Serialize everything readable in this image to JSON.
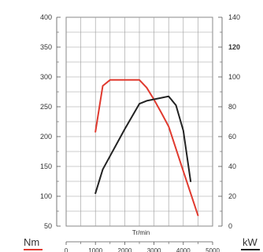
{
  "chart_data": {
    "type": "line",
    "title": "",
    "xlabel": "Tr/min",
    "xlim": [
      0,
      5000
    ],
    "x_ticks": [
      "0",
      "1000",
      "2000",
      "3000",
      "4000",
      "5000"
    ],
    "y_left": {
      "unit": "Nm",
      "color": "#e03a2f",
      "ylim": [
        50,
        400
      ],
      "ticks": [
        "50",
        "100",
        "150",
        "200",
        "250",
        "300",
        "350",
        "400"
      ]
    },
    "y_right": {
      "unit": "kW",
      "color": "#222222",
      "ylim": [
        0,
        140
      ],
      "ticks": [
        "0",
        "20",
        "40",
        "60",
        "80",
        "100",
        "120",
        "140"
      ],
      "bold_tick": "120"
    },
    "grid": true,
    "series": [
      {
        "unit": "Nm",
        "axis": "left",
        "color": "#e03a2f",
        "x": [
          1000,
          1250,
          1500,
          2000,
          2500,
          2750,
          3000,
          3250,
          3500,
          4000,
          4500
        ],
        "y": [
          208,
          285,
          295,
          295,
          295,
          282,
          262,
          240,
          217,
          142,
          68
        ]
      },
      {
        "unit": "kW",
        "axis": "right",
        "color": "#222222",
        "x": [
          1000,
          1250,
          1500,
          2000,
          2500,
          2750,
          3000,
          3250,
          3500,
          3750,
          4000,
          4250
        ],
        "y": [
          22,
          38,
          47,
          65,
          82,
          84,
          85,
          86,
          87,
          81,
          64,
          30
        ]
      }
    ]
  }
}
